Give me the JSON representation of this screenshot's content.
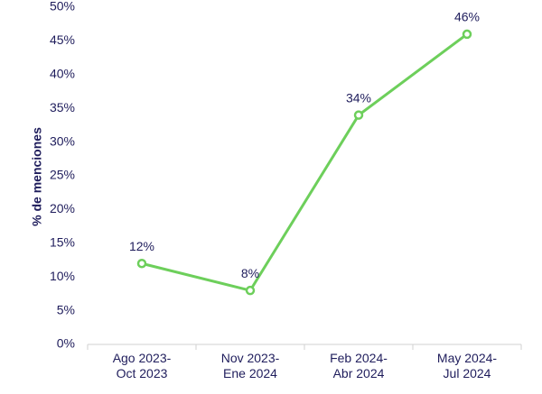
{
  "chart_data": {
    "type": "line",
    "y_label": "% de menciones",
    "categories": [
      "Ago 2023-\nOct 2023",
      "Nov 2023-\nEne 2024",
      "Feb 2024-\nAbr 2024",
      "May 2024-\nJul 2024"
    ],
    "series": [
      {
        "name": "% de menciones",
        "color": "#6dcf5b",
        "values": [
          12,
          8,
          34,
          46
        ],
        "value_labels": [
          "12%",
          "8%",
          "34%",
          "46%"
        ]
      }
    ],
    "ylim": [
      0,
      50
    ],
    "yticks": [
      {
        "value": 0,
        "label": "0%"
      },
      {
        "value": 5,
        "label": "5%"
      },
      {
        "value": 10,
        "label": "10%"
      },
      {
        "value": 15,
        "label": "15%"
      },
      {
        "value": 20,
        "label": "20%"
      },
      {
        "value": 25,
        "label": "25%"
      },
      {
        "value": 30,
        "label": "30%"
      },
      {
        "value": 35,
        "label": "35%"
      },
      {
        "value": 40,
        "label": "40%"
      },
      {
        "value": 45,
        "label": "45%"
      },
      {
        "value": 50,
        "label": "50%"
      }
    ],
    "grid": false
  }
}
